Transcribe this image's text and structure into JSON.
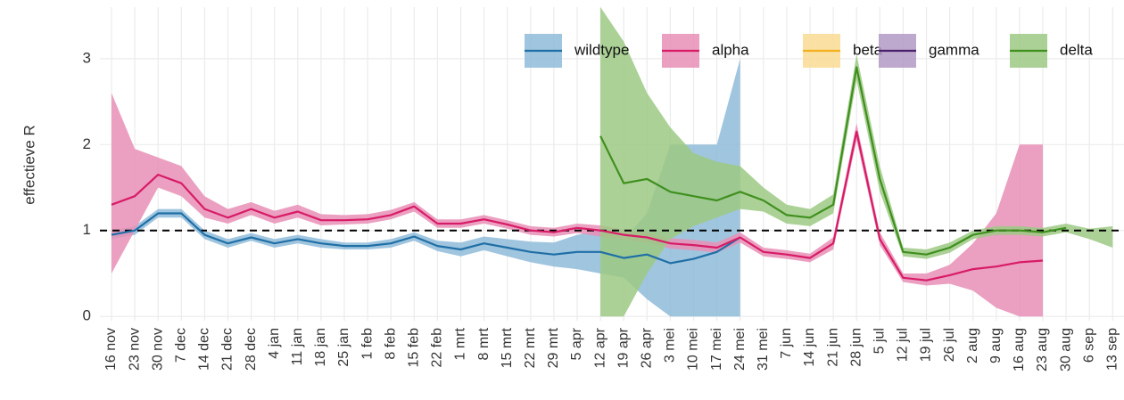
{
  "chart_data": {
    "type": "line",
    "y_label": "effectieve R",
    "categories": [
      "16 nov",
      "23 nov",
      "30 nov",
      "7 dec",
      "14 dec",
      "21 dec",
      "28 dec",
      "4 jan",
      "11 jan",
      "18 jan",
      "25 jan",
      "1 feb",
      "8 feb",
      "15 feb",
      "22 feb",
      "1 mrt",
      "8 mrt",
      "15 mrt",
      "22 mrt",
      "29 mrt",
      "5 apr",
      "12 apr",
      "19 apr",
      "26 apr",
      "3 mei",
      "10 mei",
      "17 mei",
      "24 mei",
      "31 mei",
      "7 jun",
      "14 jun",
      "21 jun",
      "28 jun",
      "5 jul",
      "12 jul",
      "19 jul",
      "26 jul",
      "2 aug",
      "9 aug",
      "16 aug",
      "23 aug",
      "30 aug",
      "6 sep",
      "13 sep"
    ],
    "ylim": [
      -0.05,
      3.6
    ],
    "yticks": [
      0,
      1,
      2,
      3
    ],
    "grid": true,
    "hline": 1,
    "legend": "top",
    "series": [
      {
        "name": "wildtype",
        "color": "#1f6fa6",
        "band_color": "#8fbbd9",
        "values": [
          0.95,
          1.0,
          1.2,
          1.2,
          0.95,
          0.85,
          0.92,
          0.85,
          0.9,
          0.85,
          0.82,
          0.82,
          0.85,
          0.93,
          0.82,
          0.78,
          0.85,
          0.8,
          0.75,
          0.72,
          0.75,
          0.75,
          0.68,
          0.72,
          0.62,
          0.67,
          0.75,
          0.92,
          null,
          null,
          null,
          null,
          null,
          null,
          null,
          null,
          null,
          null,
          null,
          null,
          null,
          null,
          null,
          null
        ],
        "lower": [
          0.9,
          0.95,
          1.15,
          1.15,
          0.9,
          0.8,
          0.88,
          0.8,
          0.85,
          0.8,
          0.78,
          0.78,
          0.8,
          0.88,
          0.76,
          0.7,
          0.77,
          0.7,
          0.63,
          0.58,
          0.55,
          0.5,
          0.45,
          0.2,
          0,
          0,
          0,
          0,
          null,
          null,
          null,
          null,
          null,
          null,
          null,
          null,
          null,
          null,
          null,
          null,
          null,
          null,
          null,
          null
        ],
        "upper": [
          1.0,
          1.05,
          1.25,
          1.25,
          1.0,
          0.9,
          0.97,
          0.9,
          0.95,
          0.9,
          0.86,
          0.86,
          0.9,
          0.98,
          0.88,
          0.86,
          0.93,
          0.9,
          0.87,
          0.86,
          0.95,
          1.0,
          0.9,
          1.2,
          2,
          2,
          2,
          3,
          null,
          null,
          null,
          null,
          null,
          null,
          null,
          null,
          null,
          null,
          null,
          null,
          null,
          null,
          null,
          null
        ]
      },
      {
        "name": "alpha",
        "color": "#d81b66",
        "band_color": "#e88fb6",
        "values": [
          1.3,
          1.4,
          1.65,
          1.55,
          1.25,
          1.15,
          1.25,
          1.15,
          1.22,
          1.12,
          1.12,
          1.13,
          1.18,
          1.28,
          1.08,
          1.08,
          1.13,
          1.07,
          1.0,
          0.98,
          1.03,
          1.0,
          0.95,
          0.92,
          0.85,
          0.83,
          0.8,
          0.92,
          0.75,
          0.72,
          0.68,
          0.85,
          2.15,
          0.9,
          0.45,
          0.42,
          0.48,
          0.55,
          0.58,
          0.63,
          0.65,
          null,
          null,
          null
        ],
        "lower": [
          0.5,
          1.0,
          1.5,
          1.4,
          1.15,
          1.08,
          1.18,
          1.08,
          1.15,
          1.06,
          1.07,
          1.08,
          1.13,
          1.22,
          1.03,
          1.03,
          1.08,
          1.02,
          0.95,
          0.93,
          0.97,
          0.93,
          0.89,
          0.86,
          0.79,
          0.77,
          0.74,
          0.86,
          0.7,
          0.67,
          0.63,
          0.78,
          2.05,
          0.83,
          0.4,
          0.36,
          0.38,
          0.3,
          0.1,
          0,
          0,
          null,
          null,
          null
        ],
        "upper": [
          2.6,
          1.95,
          1.85,
          1.75,
          1.4,
          1.25,
          1.33,
          1.23,
          1.3,
          1.19,
          1.18,
          1.19,
          1.24,
          1.33,
          1.13,
          1.13,
          1.18,
          1.12,
          1.05,
          1.03,
          1.08,
          1.06,
          1.01,
          0.98,
          0.91,
          0.89,
          0.86,
          0.98,
          0.8,
          0.77,
          0.73,
          0.92,
          2.25,
          0.98,
          0.5,
          0.5,
          0.6,
          0.85,
          1.2,
          2,
          2,
          null,
          null,
          null
        ]
      },
      {
        "name": "beta",
        "color": "#f2b01e",
        "band_color": "#f9dc93"
      },
      {
        "name": "gamma",
        "color": "#4a1f6b",
        "band_color": "#b09ac4"
      },
      {
        "name": "delta",
        "color": "#3f8f1e",
        "band_color": "#9cc984",
        "values": [
          null,
          null,
          null,
          null,
          null,
          null,
          null,
          null,
          null,
          null,
          null,
          null,
          null,
          null,
          null,
          null,
          null,
          null,
          null,
          null,
          null,
          2.1,
          1.55,
          1.6,
          1.45,
          1.4,
          1.35,
          1.45,
          1.35,
          1.18,
          1.15,
          1.3,
          2.9,
          1.6,
          0.75,
          0.72,
          0.8,
          0.95,
          1.0,
          1.0,
          0.98,
          1.03,
          null,
          null
        ],
        "lower": [
          null,
          null,
          null,
          null,
          null,
          null,
          null,
          null,
          null,
          null,
          null,
          null,
          null,
          null,
          null,
          null,
          null,
          null,
          null,
          null,
          null,
          0,
          0,
          0.5,
          0.9,
          1.05,
          1.15,
          1.25,
          1.22,
          1.08,
          1.05,
          1.2,
          2.75,
          1.45,
          0.7,
          0.67,
          0.74,
          0.9,
          0.95,
          0.95,
          0.93,
          0.98,
          0.9,
          0.8
        ],
        "upper": [
          null,
          null,
          null,
          null,
          null,
          null,
          null,
          null,
          null,
          null,
          null,
          null,
          null,
          null,
          null,
          null,
          null,
          null,
          null,
          null,
          null,
          3.6,
          3.2,
          2.6,
          2.2,
          1.9,
          1.8,
          1.75,
          1.5,
          1.3,
          1.25,
          1.42,
          3.05,
          1.75,
          0.8,
          0.78,
          0.86,
          1.0,
          1.05,
          1.05,
          1.03,
          1.08,
          1.02,
          1.05
        ]
      }
    ]
  }
}
